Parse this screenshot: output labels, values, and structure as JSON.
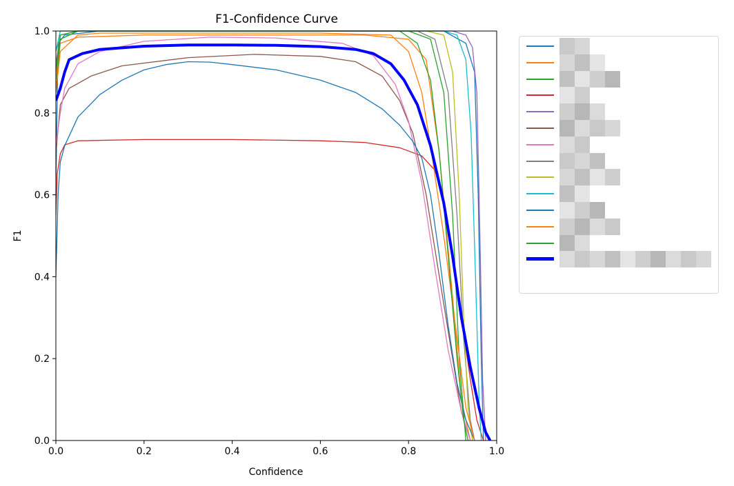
{
  "chart_data": {
    "type": "line",
    "title": "F1-Confidence Curve",
    "xlabel": "Confidence",
    "ylabel": "F1",
    "xlim": [
      0.0,
      1.0
    ],
    "ylim": [
      0.0,
      1.0
    ],
    "xticks": [
      "0.0",
      "0.2",
      "0.4",
      "0.6",
      "0.8",
      "1.0"
    ],
    "yticks": [
      "0.0",
      "0.2",
      "0.4",
      "0.6",
      "0.8",
      "1.0"
    ],
    "legend_position": "outside-right",
    "legend_labels_obscured": true,
    "series": [
      {
        "name": "",
        "color": "#1f77b4",
        "width": 1.3,
        "points": [
          [
            0,
            0.62
          ],
          [
            0.005,
            0.97
          ],
          [
            0.02,
            0.99
          ],
          [
            0.1,
            1.0
          ],
          [
            0.7,
            1.0
          ],
          [
            0.88,
            1.0
          ],
          [
            0.93,
            0.97
          ],
          [
            0.95,
            0.9
          ],
          [
            0.958,
            0.6
          ],
          [
            0.965,
            0.2
          ],
          [
            0.97,
            0.0
          ]
        ]
      },
      {
        "name": "",
        "color": "#ff7f0e",
        "width": 1.3,
        "points": [
          [
            0,
            0.88
          ],
          [
            0.01,
            0.97
          ],
          [
            0.05,
            0.985
          ],
          [
            0.2,
            0.99
          ],
          [
            0.7,
            0.99
          ],
          [
            0.8,
            0.98
          ],
          [
            0.84,
            0.93
          ],
          [
            0.87,
            0.7
          ],
          [
            0.9,
            0.35
          ],
          [
            0.92,
            0.1
          ],
          [
            0.94,
            0.0
          ]
        ]
      },
      {
        "name": "",
        "color": "#2ca02c",
        "width": 1.3,
        "points": [
          [
            0,
            0.85
          ],
          [
            0.01,
            0.98
          ],
          [
            0.05,
            1.0
          ],
          [
            0.8,
            1.0
          ],
          [
            0.85,
            0.98
          ],
          [
            0.88,
            0.85
          ],
          [
            0.9,
            0.55
          ],
          [
            0.915,
            0.2
          ],
          [
            0.93,
            0.0
          ]
        ]
      },
      {
        "name": "",
        "color": "#d62728",
        "width": 1.3,
        "points": [
          [
            0,
            0.55
          ],
          [
            0.003,
            0.65
          ],
          [
            0.01,
            0.7
          ],
          [
            0.02,
            0.722
          ],
          [
            0.05,
            0.732
          ],
          [
            0.2,
            0.735
          ],
          [
            0.4,
            0.735
          ],
          [
            0.6,
            0.732
          ],
          [
            0.7,
            0.728
          ],
          [
            0.78,
            0.715
          ],
          [
            0.83,
            0.695
          ],
          [
            0.86,
            0.66
          ],
          [
            0.88,
            0.58
          ],
          [
            0.9,
            0.45
          ],
          [
            0.92,
            0.3
          ],
          [
            0.94,
            0.15
          ],
          [
            0.955,
            0.05
          ],
          [
            0.97,
            0.0
          ]
        ]
      },
      {
        "name": "",
        "color": "#9467bd",
        "width": 1.3,
        "points": [
          [
            0,
            0.9
          ],
          [
            0.01,
            0.99
          ],
          [
            0.05,
            1.0
          ],
          [
            0.9,
            1.0
          ],
          [
            0.93,
            0.99
          ],
          [
            0.945,
            0.96
          ],
          [
            0.955,
            0.85
          ],
          [
            0.962,
            0.5
          ],
          [
            0.968,
            0.15
          ],
          [
            0.975,
            0.0
          ]
        ]
      },
      {
        "name": "",
        "color": "#8c564b",
        "width": 1.3,
        "points": [
          [
            0,
            0.7
          ],
          [
            0.01,
            0.82
          ],
          [
            0.03,
            0.86
          ],
          [
            0.08,
            0.89
          ],
          [
            0.15,
            0.915
          ],
          [
            0.3,
            0.935
          ],
          [
            0.45,
            0.943
          ],
          [
            0.6,
            0.938
          ],
          [
            0.68,
            0.925
          ],
          [
            0.74,
            0.89
          ],
          [
            0.78,
            0.83
          ],
          [
            0.81,
            0.75
          ],
          [
            0.84,
            0.6
          ],
          [
            0.87,
            0.4
          ],
          [
            0.9,
            0.2
          ],
          [
            0.92,
            0.07
          ],
          [
            0.94,
            0.0
          ]
        ]
      },
      {
        "name": "",
        "color": "#e377c2",
        "width": 1.3,
        "points": [
          [
            0,
            0.72
          ],
          [
            0.01,
            0.8
          ],
          [
            0.02,
            0.86
          ],
          [
            0.05,
            0.92
          ],
          [
            0.1,
            0.95
          ],
          [
            0.2,
            0.975
          ],
          [
            0.35,
            0.985
          ],
          [
            0.5,
            0.983
          ],
          [
            0.65,
            0.97
          ],
          [
            0.72,
            0.94
          ],
          [
            0.77,
            0.87
          ],
          [
            0.8,
            0.78
          ],
          [
            0.83,
            0.63
          ],
          [
            0.86,
            0.42
          ],
          [
            0.89,
            0.22
          ],
          [
            0.92,
            0.07
          ],
          [
            0.94,
            0.0
          ]
        ]
      },
      {
        "name": "",
        "color": "#7f7f7f",
        "width": 1.3,
        "points": [
          [
            0,
            0.92
          ],
          [
            0.01,
            0.99
          ],
          [
            0.05,
            1.0
          ],
          [
            0.82,
            1.0
          ],
          [
            0.86,
            0.98
          ],
          [
            0.89,
            0.85
          ],
          [
            0.91,
            0.55
          ],
          [
            0.925,
            0.25
          ],
          [
            0.94,
            0.05
          ],
          [
            0.95,
            0.0
          ]
        ]
      },
      {
        "name": "",
        "color": "#bcbd22",
        "width": 1.3,
        "points": [
          [
            0,
            0.95
          ],
          [
            0.01,
            1.0
          ],
          [
            0.84,
            1.0
          ],
          [
            0.88,
            0.99
          ],
          [
            0.9,
            0.9
          ],
          [
            0.915,
            0.6
          ],
          [
            0.925,
            0.3
          ],
          [
            0.935,
            0.08
          ],
          [
            0.945,
            0.0
          ]
        ]
      },
      {
        "name": "",
        "color": "#17becf",
        "width": 1.3,
        "points": [
          [
            0,
            0.95
          ],
          [
            0.01,
            1.0
          ],
          [
            0.88,
            1.0
          ],
          [
            0.91,
            0.99
          ],
          [
            0.93,
            0.93
          ],
          [
            0.942,
            0.75
          ],
          [
            0.952,
            0.4
          ],
          [
            0.96,
            0.1
          ],
          [
            0.965,
            0.0
          ]
        ]
      },
      {
        "name": "",
        "color": "#1f77b4",
        "width": 1.3,
        "points": [
          [
            0,
            0.4
          ],
          [
            0.005,
            0.6
          ],
          [
            0.01,
            0.68
          ],
          [
            0.02,
            0.72
          ],
          [
            0.05,
            0.79
          ],
          [
            0.1,
            0.845
          ],
          [
            0.15,
            0.88
          ],
          [
            0.2,
            0.905
          ],
          [
            0.25,
            0.918
          ],
          [
            0.3,
            0.925
          ],
          [
            0.35,
            0.924
          ],
          [
            0.4,
            0.918
          ],
          [
            0.5,
            0.905
          ],
          [
            0.6,
            0.88
          ],
          [
            0.68,
            0.85
          ],
          [
            0.74,
            0.81
          ],
          [
            0.78,
            0.77
          ],
          [
            0.81,
            0.73
          ],
          [
            0.83,
            0.69
          ],
          [
            0.85,
            0.6
          ],
          [
            0.87,
            0.45
          ],
          [
            0.89,
            0.28
          ],
          [
            0.91,
            0.14
          ],
          [
            0.93,
            0.05
          ],
          [
            0.95,
            0.0
          ]
        ]
      },
      {
        "name": "",
        "color": "#ff7f0e",
        "width": 1.3,
        "points": [
          [
            0,
            0.85
          ],
          [
            0.01,
            0.95
          ],
          [
            0.05,
            0.99
          ],
          [
            0.1,
            0.995
          ],
          [
            0.6,
            0.995
          ],
          [
            0.76,
            0.99
          ],
          [
            0.8,
            0.95
          ],
          [
            0.83,
            0.85
          ],
          [
            0.85,
            0.72
          ],
          [
            0.88,
            0.5
          ],
          [
            0.91,
            0.25
          ],
          [
            0.93,
            0.08
          ],
          [
            0.95,
            0.0
          ]
        ]
      },
      {
        "name": "",
        "color": "#2ca02c",
        "width": 1.3,
        "points": [
          [
            0,
            0.9
          ],
          [
            0.01,
            0.99
          ],
          [
            0.05,
            1.0
          ],
          [
            0.78,
            1.0
          ],
          [
            0.82,
            0.97
          ],
          [
            0.85,
            0.88
          ],
          [
            0.87,
            0.7
          ],
          [
            0.89,
            0.45
          ],
          [
            0.91,
            0.2
          ],
          [
            0.925,
            0.05
          ],
          [
            0.935,
            0.0
          ]
        ]
      },
      {
        "name": "",
        "color": "#0000ff",
        "width": 4,
        "points": [
          [
            0,
            0.83
          ],
          [
            0.01,
            0.86
          ],
          [
            0.02,
            0.9
          ],
          [
            0.03,
            0.93
          ],
          [
            0.06,
            0.945
          ],
          [
            0.1,
            0.955
          ],
          [
            0.2,
            0.963
          ],
          [
            0.3,
            0.966
          ],
          [
            0.4,
            0.966
          ],
          [
            0.5,
            0.965
          ],
          [
            0.6,
            0.962
          ],
          [
            0.68,
            0.955
          ],
          [
            0.72,
            0.945
          ],
          [
            0.76,
            0.92
          ],
          [
            0.79,
            0.88
          ],
          [
            0.82,
            0.82
          ],
          [
            0.85,
            0.72
          ],
          [
            0.88,
            0.58
          ],
          [
            0.9,
            0.45
          ],
          [
            0.92,
            0.3
          ],
          [
            0.94,
            0.18
          ],
          [
            0.96,
            0.08
          ],
          [
            0.975,
            0.02
          ],
          [
            0.985,
            0.0
          ]
        ]
      }
    ]
  }
}
